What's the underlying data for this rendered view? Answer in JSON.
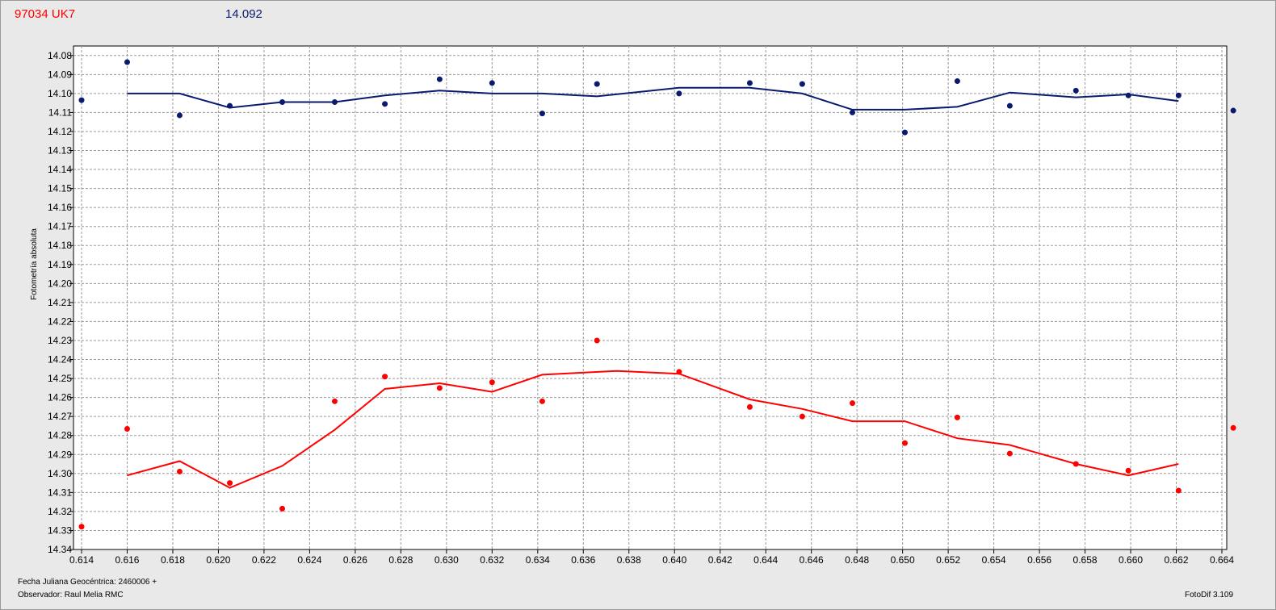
{
  "header": {
    "object_name": "97034 UK7",
    "magnitude": "14.092"
  },
  "footer": {
    "date_label": "Fecha Juliana Geocéntrica: 2460006 +",
    "observer": "Observador: Raul Melia RMC",
    "version": "FotoDif 3.109"
  },
  "chart_data": {
    "type": "scatter",
    "ylabel": "Fotometría absoluta",
    "xlabel": "",
    "xlim": [
      0.614,
      0.6645
    ],
    "ylim": [
      14.34,
      14.075
    ],
    "y_inverted": true,
    "grid": true,
    "x_ticks": [
      "0.614",
      "0.616",
      "0.618",
      "0.620",
      "0.622",
      "0.624",
      "0.626",
      "0.628",
      "0.630",
      "0.632",
      "0.634",
      "0.636",
      "0.638",
      "0.640",
      "0.642",
      "0.644",
      "0.646",
      "0.648",
      "0.650",
      "0.652",
      "0.654",
      "0.656",
      "0.658",
      "0.660",
      "0.662",
      "0.664"
    ],
    "y_ticks": [
      "14.08",
      "14.09",
      "14.10",
      "14.11",
      "14.12",
      "14.13",
      "14.14",
      "14.15",
      "14.16",
      "14.17",
      "14.18",
      "14.19",
      "14.20",
      "14.21",
      "14.22",
      "14.23",
      "14.24",
      "14.25",
      "14.26",
      "14.27",
      "14.28",
      "14.29",
      "14.30",
      "14.31",
      "14.32",
      "14.33",
      "14.34"
    ],
    "series": [
      {
        "color": "#0a1a6e",
        "points": [
          [
            0.614,
            14.1035
          ],
          [
            0.616,
            14.0835
          ],
          [
            0.6183,
            14.1115
          ],
          [
            0.6205,
            14.1065
          ],
          [
            0.6228,
            14.1045
          ],
          [
            0.6251,
            14.1045
          ],
          [
            0.6273,
            14.1055
          ],
          [
            0.6297,
            14.0925
          ],
          [
            0.632,
            14.0945
          ],
          [
            0.6342,
            14.1105
          ],
          [
            0.6366,
            14.095
          ],
          [
            0.6402,
            14.1
          ],
          [
            0.6433,
            14.0945
          ],
          [
            0.6456,
            14.095
          ],
          [
            0.6478,
            14.11
          ],
          [
            0.6501,
            14.1205
          ],
          [
            0.6524,
            14.0935
          ],
          [
            0.6547,
            14.1065
          ],
          [
            0.6576,
            14.0985
          ],
          [
            0.6599,
            14.101
          ],
          [
            0.6621,
            14.101
          ],
          [
            0.6645,
            14.109
          ]
        ],
        "trend": [
          [
            0.616,
            14.1
          ],
          [
            0.6183,
            14.1
          ],
          [
            0.6205,
            14.1075
          ],
          [
            0.6228,
            14.1045
          ],
          [
            0.6251,
            14.1045
          ],
          [
            0.6273,
            14.101
          ],
          [
            0.6297,
            14.0985
          ],
          [
            0.632,
            14.1
          ],
          [
            0.6342,
            14.1
          ],
          [
            0.6366,
            14.1015
          ],
          [
            0.6402,
            14.097
          ],
          [
            0.6433,
            14.097
          ],
          [
            0.6456,
            14.1
          ],
          [
            0.6478,
            14.1085
          ],
          [
            0.6501,
            14.1085
          ],
          [
            0.6524,
            14.107
          ],
          [
            0.6547,
            14.0995
          ],
          [
            0.6576,
            14.102
          ],
          [
            0.6599,
            14.1005
          ],
          [
            0.6621,
            14.104
          ]
        ]
      },
      {
        "color": "#ff0000",
        "points": [
          [
            0.614,
            14.328
          ],
          [
            0.616,
            14.2765
          ],
          [
            0.6183,
            14.299
          ],
          [
            0.6205,
            14.305
          ],
          [
            0.6228,
            14.3185
          ],
          [
            0.6251,
            14.262
          ],
          [
            0.6273,
            14.249
          ],
          [
            0.6297,
            14.255
          ],
          [
            0.632,
            14.252
          ],
          [
            0.6342,
            14.262
          ],
          [
            0.6366,
            14.23
          ],
          [
            0.6402,
            14.2465
          ],
          [
            0.6433,
            14.265
          ],
          [
            0.6456,
            14.27
          ],
          [
            0.6478,
            14.263
          ],
          [
            0.6501,
            14.284
          ],
          [
            0.6524,
            14.2705
          ],
          [
            0.6547,
            14.2895
          ],
          [
            0.6576,
            14.295
          ],
          [
            0.6599,
            14.2985
          ],
          [
            0.6621,
            14.309
          ],
          [
            0.6645,
            14.276
          ]
        ],
        "trend": [
          [
            0.616,
            14.301
          ],
          [
            0.6183,
            14.2935
          ],
          [
            0.6205,
            14.3075
          ],
          [
            0.6228,
            14.296
          ],
          [
            0.6251,
            14.277
          ],
          [
            0.6273,
            14.2555
          ],
          [
            0.6297,
            14.2525
          ],
          [
            0.632,
            14.257
          ],
          [
            0.6342,
            14.248
          ],
          [
            0.6375,
            14.246
          ],
          [
            0.6402,
            14.2475
          ],
          [
            0.6433,
            14.261
          ],
          [
            0.6456,
            14.266
          ],
          [
            0.6478,
            14.2725
          ],
          [
            0.6501,
            14.2725
          ],
          [
            0.6524,
            14.2815
          ],
          [
            0.6547,
            14.285
          ],
          [
            0.6576,
            14.295
          ],
          [
            0.6599,
            14.301
          ],
          [
            0.6621,
            14.295
          ]
        ]
      }
    ]
  }
}
